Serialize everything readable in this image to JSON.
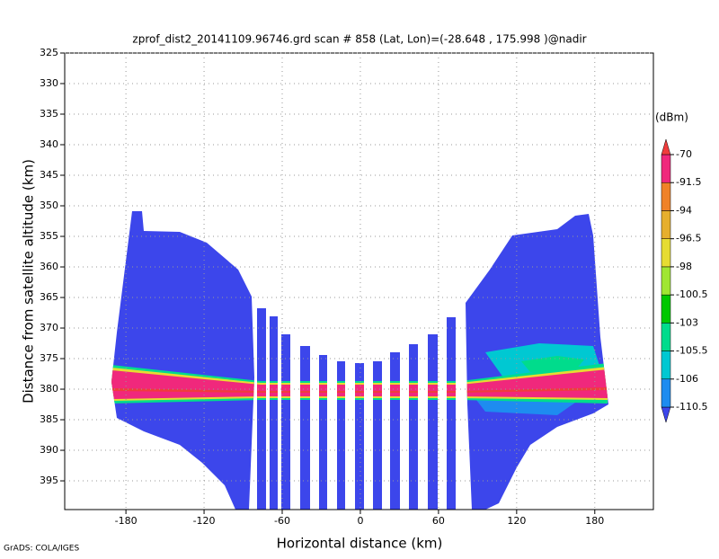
{
  "chart_data": {
    "type": "field",
    "title": "zprof_dist2_20141109.96746.grd  scan # 858  (Lat, Lon)=(-28.648 , 175.998 )@nadir",
    "x_label": "Horizontal distance (km)",
    "y_label": "Distance from satellite altitude (km)",
    "footer": "GrADS: COLA/IGES",
    "xlim": [
      -227,
      225
    ],
    "xticks": [
      -180,
      -120,
      -60,
      0,
      60,
      120,
      180
    ],
    "ylim": [
      325,
      399.7
    ],
    "yticks": [
      325,
      330,
      335,
      340,
      345,
      350,
      355,
      360,
      365,
      370,
      375,
      380,
      385,
      390,
      395
    ],
    "y_inverted": true,
    "grid": true,
    "colorbar": {
      "label": "(dBm)",
      "levels": [
        -110.5,
        -106,
        -105.5,
        -103,
        -100.5,
        -98,
        -96.5,
        -94,
        -91.5,
        -70
      ],
      "colors": [
        "#3c46eb",
        "#1e8cf0",
        "#00c8d2",
        "#00dc8c",
        "#00c800",
        "#a0e632",
        "#e6dc32",
        "#e6af2d",
        "#f08228",
        "#f0287c",
        "#f03c3c"
      ]
    }
  }
}
